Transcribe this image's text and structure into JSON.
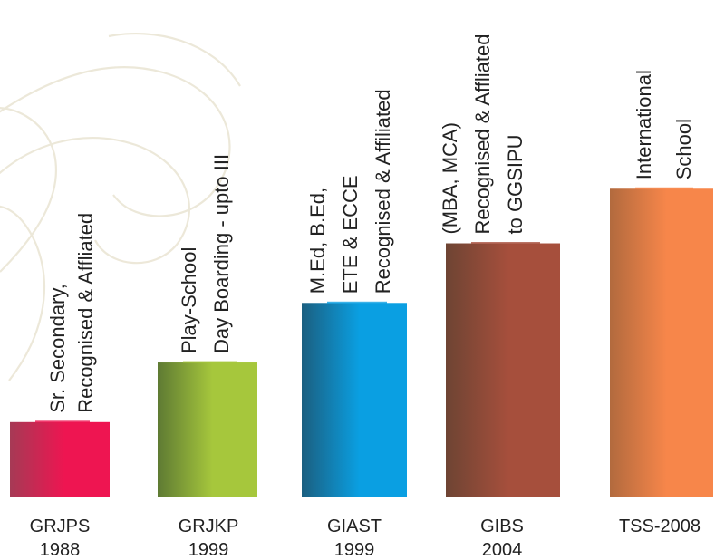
{
  "chart_data": {
    "type": "bar",
    "title": "",
    "xlabel": "",
    "ylabel": "",
    "ylim": [
      0,
      100
    ],
    "grid": false,
    "categories": [
      [
        "GRJPS",
        "1988"
      ],
      [
        "GRJKP",
        "1999"
      ],
      [
        "GIAST",
        "1999"
      ],
      [
        "GIBS",
        "2004"
      ],
      [
        "TSS-2008"
      ]
    ],
    "values": [
      15,
      27,
      39,
      51,
      62
    ],
    "annotations": [
      [
        "Sr. Secondary,",
        "Recognised & Affliated"
      ],
      [
        "Play-School",
        "Day Boarding - upto III"
      ],
      [
        "M.Ed, B.Ed,",
        "ETE & ECCE",
        "Recognised & Affiliated"
      ],
      [
        "(MBA, MCA)",
        "Recognised & Affliated",
        "to GGSIPU"
      ],
      [
        "International",
        "School"
      ]
    ],
    "colors": [
      [
        "#a63a55",
        "#ee1551"
      ],
      [
        "#5e7a33",
        "#a6c73c"
      ],
      [
        "#1b5f80",
        "#0a9fe2"
      ],
      [
        "#6e4433",
        "#a64f3c"
      ],
      [
        "#b26a3e",
        "#f7864a"
      ]
    ]
  }
}
